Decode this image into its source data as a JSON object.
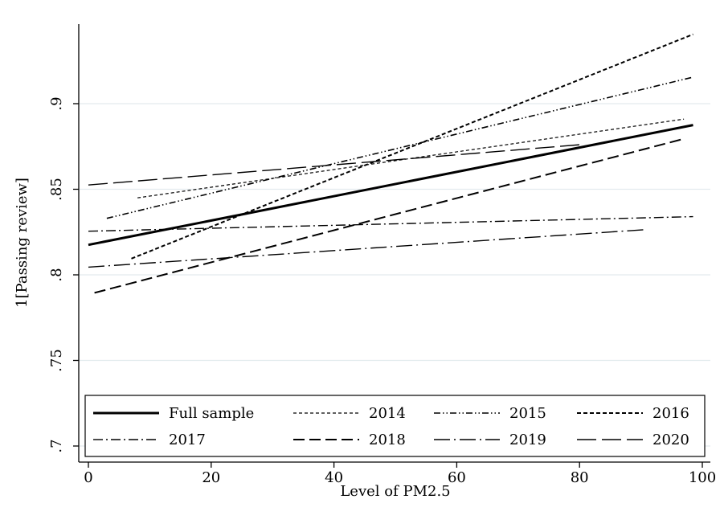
{
  "chart_data": {
    "type": "line",
    "title": "",
    "xlabel": "Level of PM2.5",
    "ylabel": "1[Passing review]",
    "xlim": [
      0,
      100
    ],
    "ylim": [
      0.7,
      0.95
    ],
    "xticks": [
      0,
      20,
      40,
      60,
      80,
      100
    ],
    "xtick_labels": [
      "0",
      "20",
      "40",
      "60",
      "80",
      "100"
    ],
    "yticks": [
      0.7,
      0.75,
      0.8,
      0.85,
      0.9
    ],
    "ytick_labels": [
      ".7",
      ".75",
      ".8",
      ".85",
      ".9"
    ],
    "grid": "horizontal",
    "legend_position": "bottom-inside",
    "series": [
      {
        "name": "Full sample",
        "style": "solid-thick",
        "x": [
          0,
          98.5
        ],
        "y": [
          0.8175,
          0.8875
        ]
      },
      {
        "name": "2014",
        "style": "short-dash-fine",
        "x": [
          8,
          97
        ],
        "y": [
          0.845,
          0.891
        ]
      },
      {
        "name": "2015",
        "style": "dash-dot-dot",
        "x": [
          3,
          98.5
        ],
        "y": [
          0.833,
          0.9155
        ]
      },
      {
        "name": "2016",
        "style": "short-dash",
        "x": [
          7,
          98.5
        ],
        "y": [
          0.8095,
          0.9405
        ]
      },
      {
        "name": "2017",
        "style": "dash-dot",
        "x": [
          0,
          98.5
        ],
        "y": [
          0.8255,
          0.834
        ]
      },
      {
        "name": "2018",
        "style": "long-dash",
        "x": [
          1,
          97
        ],
        "y": [
          0.7895,
          0.8795
        ]
      },
      {
        "name": "2019",
        "style": "long-dash-dot",
        "x": [
          0,
          91
        ],
        "y": [
          0.8045,
          0.8265
        ]
      },
      {
        "name": "2020",
        "style": "extra-long-dash",
        "x": [
          0,
          80
        ],
        "y": [
          0.8525,
          0.876
        ]
      }
    ]
  }
}
